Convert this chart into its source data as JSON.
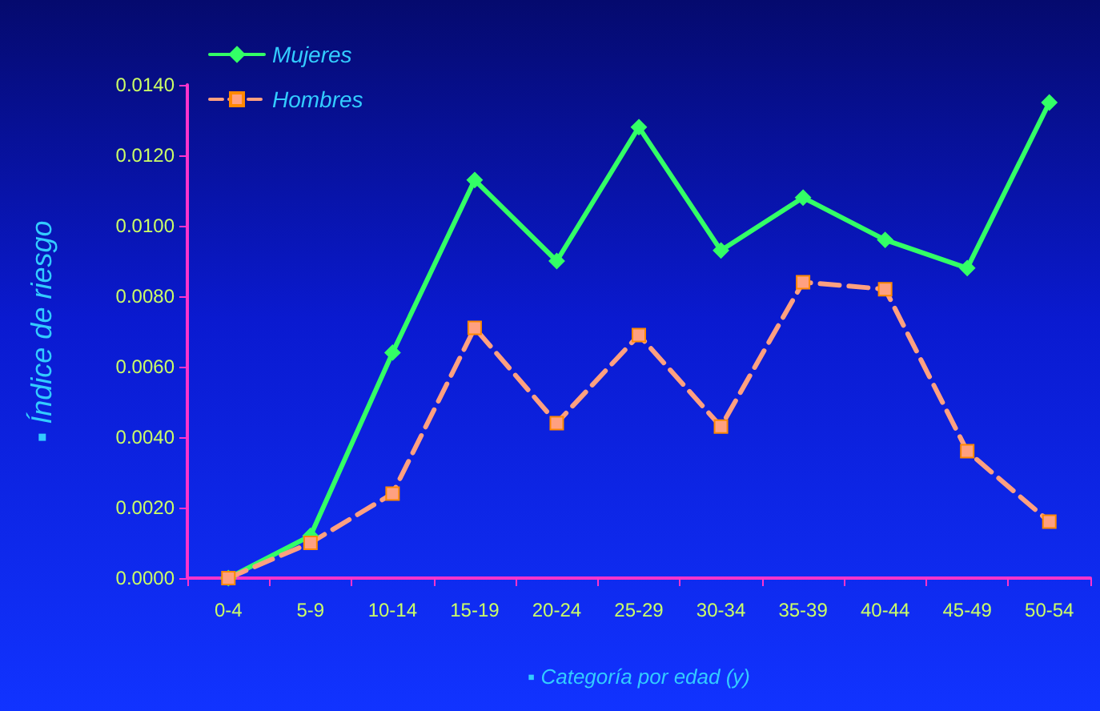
{
  "chart_data": {
    "type": "line",
    "xlabel": "▪ Categoría por edad (y)",
    "ylabel": "▪ Índice de riesgo",
    "categories": [
      "0-4",
      "5-9",
      "10-14",
      "15-19",
      "20-24",
      "25-29",
      "30-34",
      "35-39",
      "40-44",
      "45-49",
      "50-54"
    ],
    "series": [
      {
        "name": "Mujeres",
        "color": "#33ff66",
        "marker": "diamond",
        "line_style": "solid",
        "values": [
          0,
          0.0012,
          0.0064,
          0.0113,
          0.009,
          0.0128,
          0.0093,
          0.0108,
          0.0096,
          0.0088,
          0.0135
        ]
      },
      {
        "name": "Hombres",
        "color": "#ffa080",
        "marker": "square",
        "line_style": "dashed",
        "values": [
          0,
          0.001,
          0.0024,
          0.0071,
          0.0044,
          0.0069,
          0.0043,
          0.0084,
          0.0082,
          0.0036,
          0.0016
        ]
      }
    ],
    "ylim": [
      0,
      0.014
    ],
    "yticks": [
      {
        "value": 0,
        "label": "0.0000"
      },
      {
        "value": 0.002,
        "label": "0.0020"
      },
      {
        "value": 0.004,
        "label": "0.0040"
      },
      {
        "value": 0.006,
        "label": "0.0060"
      },
      {
        "value": 0.008,
        "label": "0.0080"
      },
      {
        "value": 0.01,
        "label": "0.0100"
      },
      {
        "value": 0.012,
        "label": "0.0120"
      },
      {
        "value": 0.014,
        "label": "0.0140"
      }
    ],
    "grid": false,
    "legend": "top left"
  }
}
